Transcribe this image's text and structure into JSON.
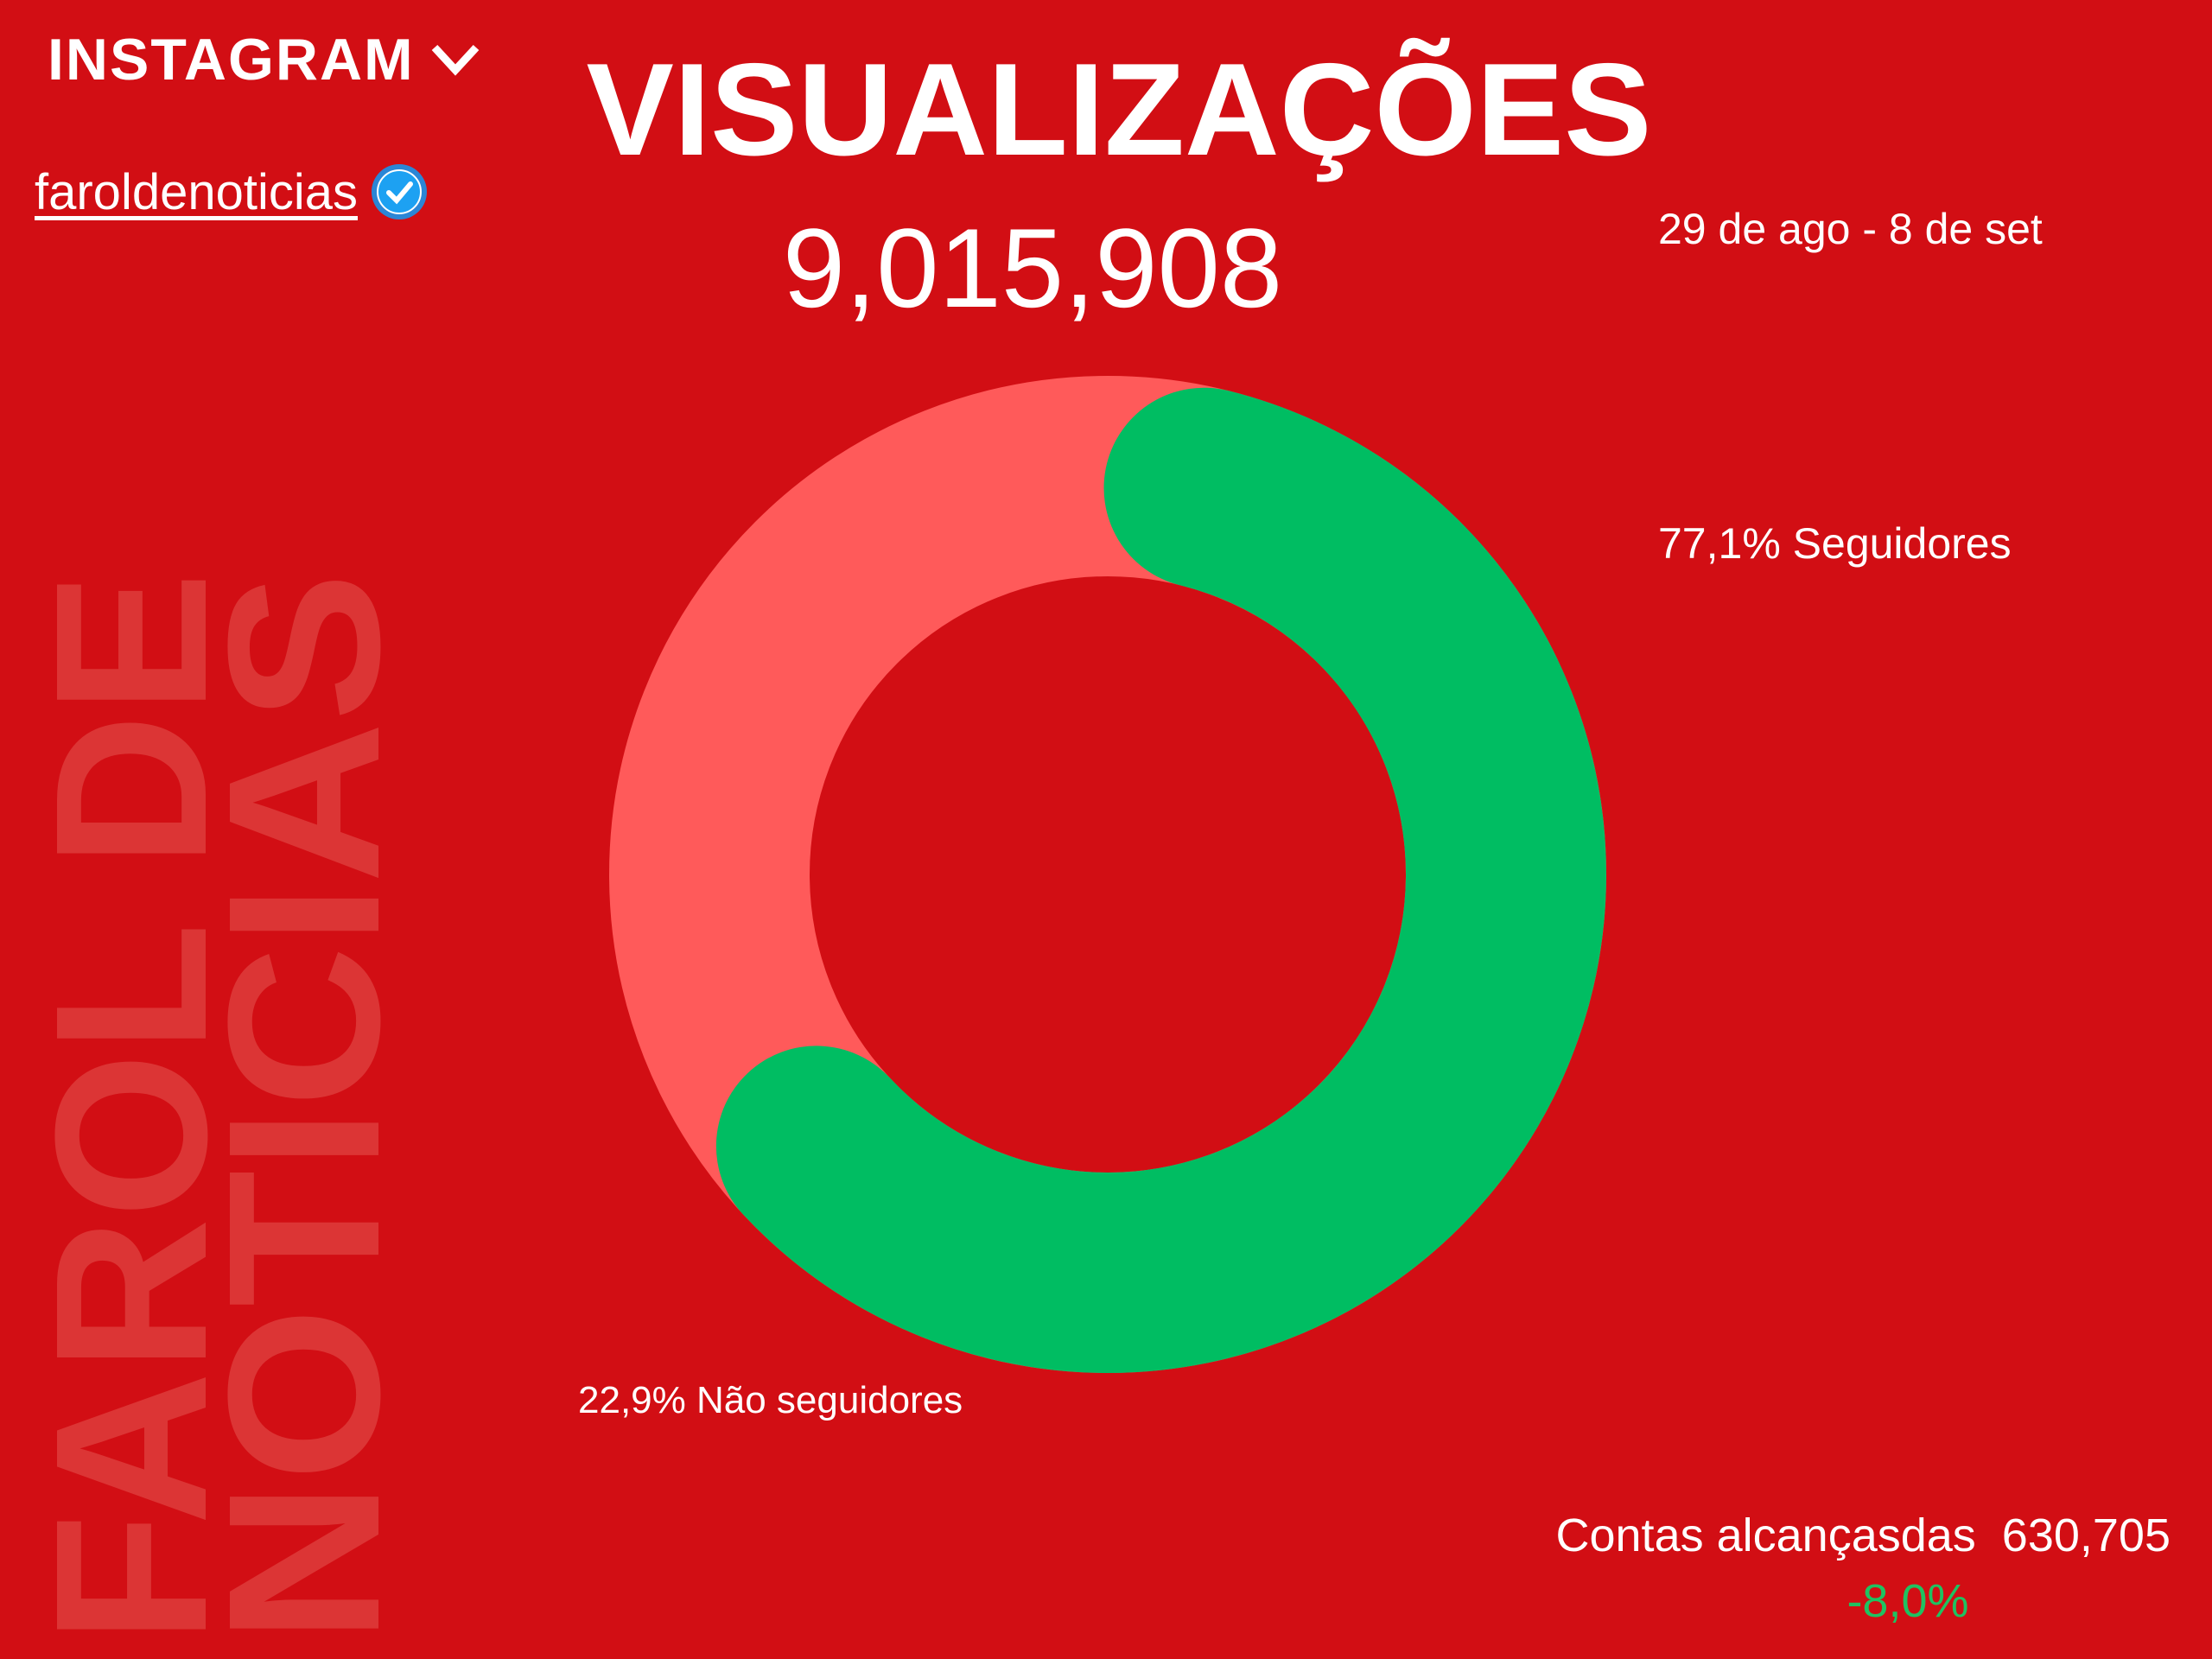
{
  "header": {
    "platform_label": "INSTAGRAM",
    "platform_icon": "chevron-down-icon",
    "account_handle": " faroldenoticias",
    "verified_icon": "verified-badge-icon",
    "title": "VISUALIZAÇÕES",
    "total_views": "9,015,908",
    "date_range": "29 de ago - 8 de set"
  },
  "watermark": {
    "line1": "FAROL DE",
    "line2": "NOTICIAS"
  },
  "chart_data": {
    "type": "pie",
    "style": "donut",
    "series": [
      {
        "name": "Seguidores",
        "value": 77.1,
        "label": "77,1% Seguidores",
        "color": "#00bd62"
      },
      {
        "name": "Não seguidores",
        "value": 22.9,
        "label": "22,9% Não seguidores",
        "color": "#ff5a5a"
      }
    ]
  },
  "footer": {
    "reach_label": "Contas alcançasdas  630,705",
    "reach_change": "-8,0%",
    "change_color": "#1fc261"
  },
  "colors": {
    "background": "#d20e14",
    "watermark": "#d83434"
  }
}
